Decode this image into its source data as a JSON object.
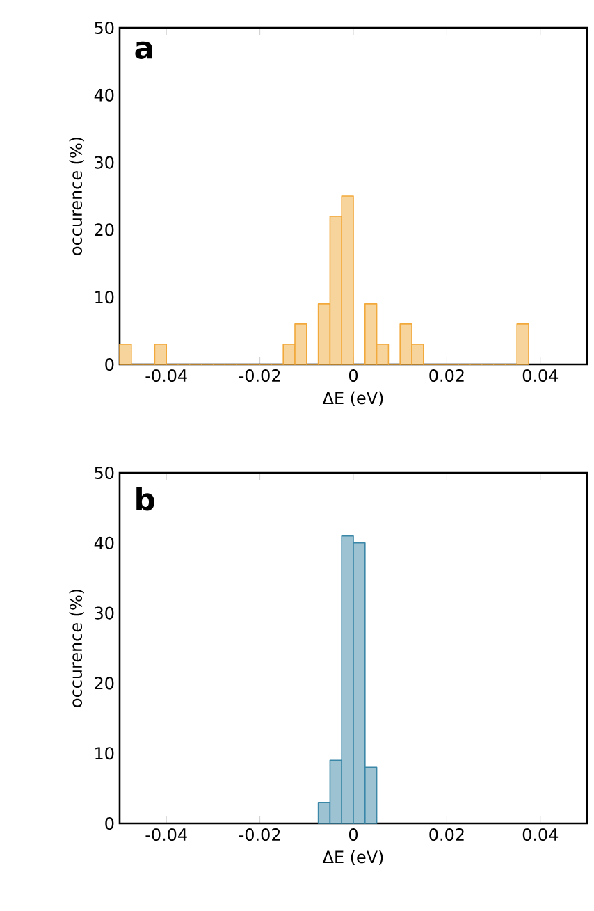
{
  "chart_data": [
    {
      "type": "histogram",
      "annotations": [
        "a"
      ],
      "xlabel": "ΔE (eV)",
      "ylabel": "occurence (%)",
      "xlim": [
        -0.05,
        0.05
      ],
      "xticks": [
        -0.04,
        -0.02,
        0,
        0.02,
        0.04
      ],
      "ylim": [
        0,
        50
      ],
      "yticks": [
        0,
        10,
        20,
        30,
        40,
        50
      ],
      "color": "#f2a93b",
      "bins": [
        -0.05,
        -0.0475,
        -0.045,
        -0.0425,
        -0.04,
        -0.0375,
        -0.035,
        -0.0325,
        -0.03,
        -0.0275,
        -0.025,
        -0.0225,
        -0.02,
        -0.0175,
        -0.015,
        -0.0125,
        -0.01,
        -0.0075,
        -0.005,
        -0.0025,
        0,
        0.0025,
        0.005,
        0.0075,
        0.01,
        0.0125,
        0.015,
        0.0175,
        0.02,
        0.0225,
        0.025,
        0.0275,
        0.03,
        0.0325,
        0.035,
        0.0375
      ],
      "values": [
        3,
        0,
        0,
        3,
        0,
        0,
        0,
        0,
        0,
        0,
        0,
        0,
        0,
        0,
        3,
        6,
        0,
        9,
        22,
        25,
        0,
        9,
        3,
        0,
        6,
        3,
        0,
        0,
        0,
        0,
        0,
        0,
        0,
        0,
        6
      ]
    },
    {
      "type": "histogram",
      "annotations": [
        "b"
      ],
      "xlabel": "ΔE (eV)",
      "ylabel": "occurence (%)",
      "xlim": [
        -0.05,
        0.05
      ],
      "xticks": [
        -0.04,
        -0.02,
        0,
        0.02,
        0.04
      ],
      "ylim": [
        0,
        50
      ],
      "yticks": [
        0,
        10,
        20,
        30,
        40,
        50
      ],
      "color": "#3b87a8",
      "bins": [
        -0.0075,
        -0.005,
        -0.0025,
        0,
        0.0025,
        0.005
      ],
      "values": [
        3,
        9,
        41,
        40,
        8
      ]
    }
  ]
}
